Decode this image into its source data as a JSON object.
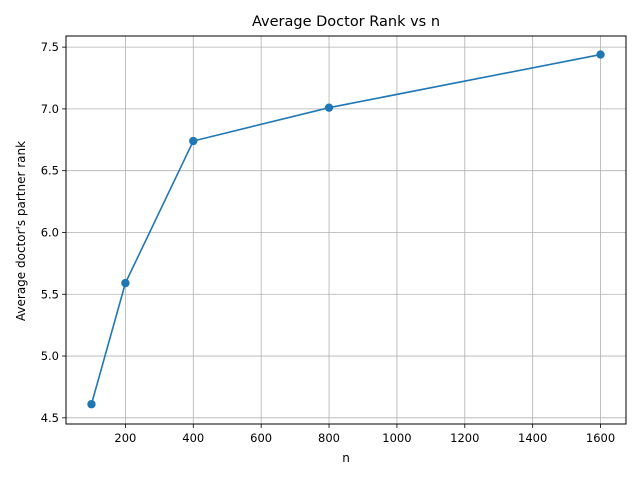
{
  "chart_data": {
    "type": "line",
    "title": "Average Doctor Rank vs n",
    "xlabel": "n",
    "ylabel": "Average doctor's partner rank",
    "x": [
      100,
      200,
      400,
      800,
      1600
    ],
    "series": [
      {
        "values": [
          4.61,
          5.59,
          6.74,
          7.01,
          7.44
        ]
      }
    ],
    "xlim": [
      25,
      1675
    ],
    "ylim": [
      4.45,
      7.59
    ],
    "xticks": [
      200,
      400,
      600,
      800,
      1000,
      1200,
      1400,
      1600
    ],
    "xtick_labels": [
      "200",
      "400",
      "600",
      "800",
      "1000",
      "1200",
      "1400",
      "1600"
    ],
    "yticks": [
      4.5,
      5.0,
      5.5,
      6.0,
      6.5,
      7.0,
      7.5
    ],
    "ytick_labels": [
      "4.5",
      "5.0",
      "5.5",
      "6.0",
      "6.5",
      "7.0",
      "7.5"
    ],
    "grid": true,
    "marker": "circle",
    "line_color": "#1f77b4",
    "grid_color": "#b0b0b0"
  }
}
